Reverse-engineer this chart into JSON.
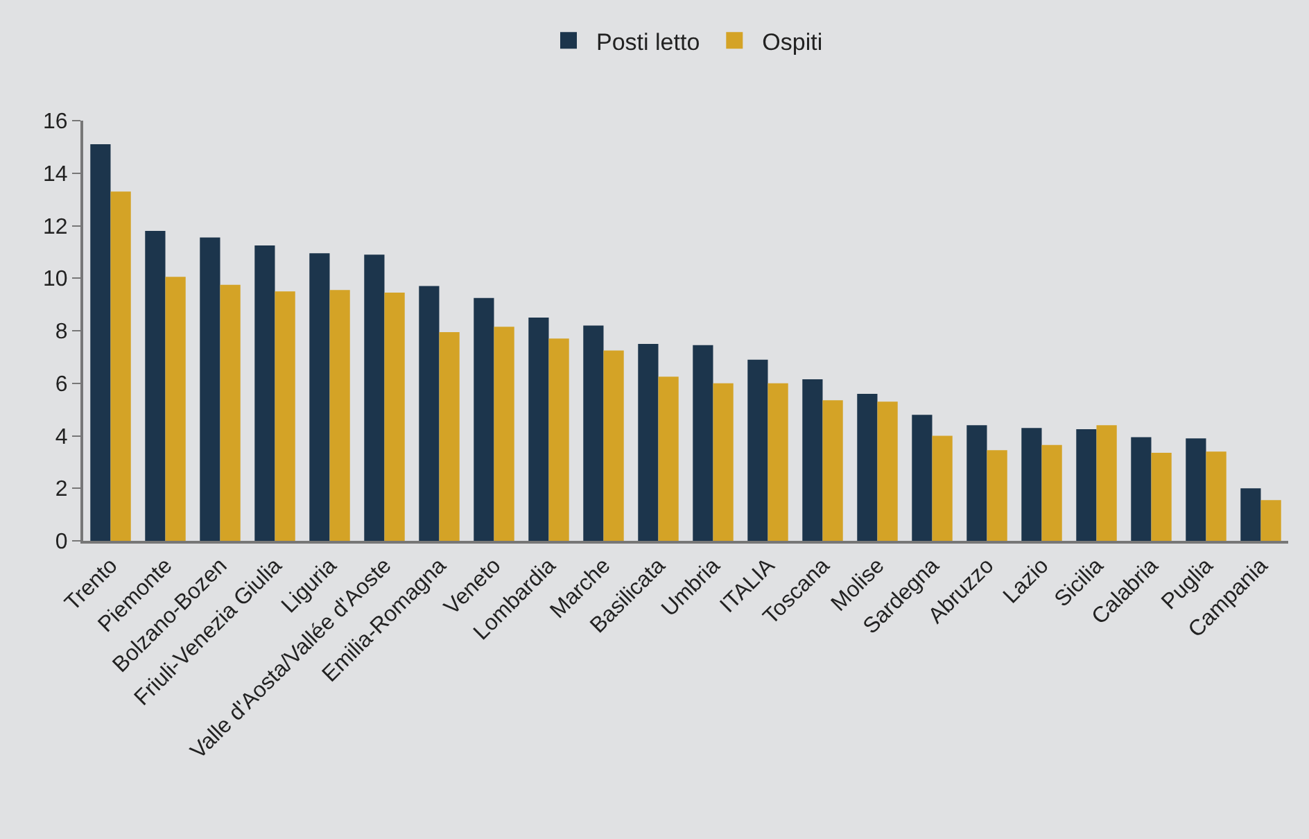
{
  "chart_data": {
    "type": "bar",
    "categories": [
      "Trento",
      "Piemonte",
      "Bolzano-Bozen",
      "Friuli-Venezia Giulia",
      "Liguria",
      "Valle d'Aosta/Vallée d'Aoste",
      "Emilia-Romagna",
      "Veneto",
      "Lombardia",
      "Marche",
      "Basilicata",
      "Umbria",
      "ITALIA",
      "Toscana",
      "Molise",
      "Sardegna",
      "Abruzzo",
      "Lazio",
      "Sicilia",
      "Calabria",
      "Puglia",
      "Campania"
    ],
    "series": [
      {
        "name": "Posti letto",
        "color": "#1c354c",
        "values": [
          15.1,
          11.8,
          11.55,
          11.25,
          10.95,
          10.9,
          9.7,
          9.25,
          8.5,
          8.2,
          7.5,
          7.45,
          6.9,
          6.15,
          5.6,
          4.8,
          4.4,
          4.3,
          4.25,
          3.95,
          3.9,
          2.0
        ]
      },
      {
        "name": "Ospiti",
        "color": "#d4a326",
        "values": [
          13.3,
          10.05,
          9.75,
          9.5,
          9.55,
          9.45,
          7.95,
          8.15,
          7.7,
          7.25,
          6.25,
          6.0,
          6.0,
          5.35,
          5.3,
          4.0,
          3.45,
          3.65,
          4.4,
          3.35,
          3.4,
          1.55
        ]
      }
    ],
    "ylim": [
      0,
      16
    ],
    "yticks": [
      0,
      2,
      4,
      6,
      8,
      10,
      12,
      14,
      16
    ],
    "grid": false,
    "legend": "top"
  }
}
